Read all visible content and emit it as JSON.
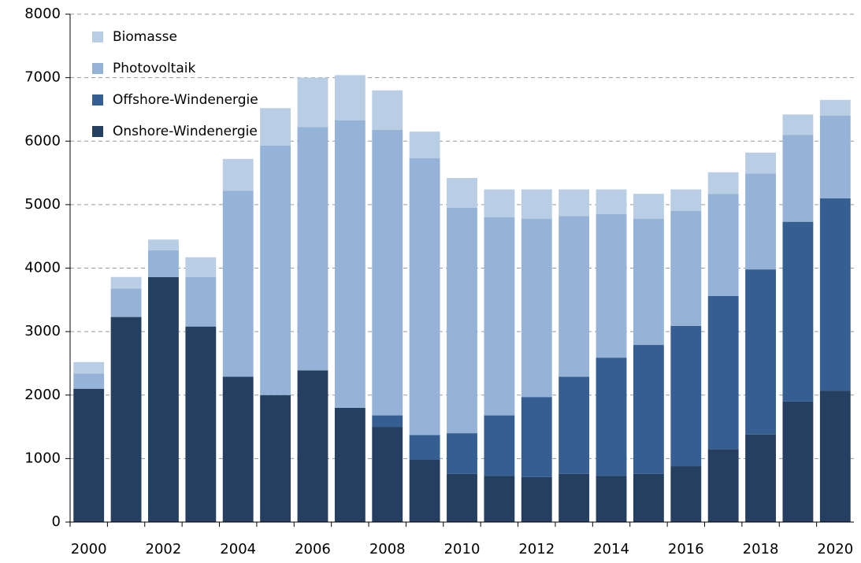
{
  "chart_data": {
    "type": "stacked_bar",
    "categories": [
      "2000",
      null,
      "2002",
      null,
      "2004",
      null,
      "2006",
      null,
      "2008",
      null,
      "2010",
      null,
      "2012",
      null,
      "2014",
      null,
      "2016",
      null,
      "2018",
      null,
      "2020"
    ],
    "series": [
      {
        "name": "Onshore-Windenergie",
        "color": "#253f60",
        "values": [
          2100,
          3230,
          3860,
          3080,
          2290,
          2000,
          2390,
          1800,
          1500,
          980,
          760,
          730,
          710,
          760,
          730,
          760,
          880,
          1150,
          1380,
          1900,
          2070
        ]
      },
      {
        "name": "Offshore-Windenergie",
        "color": "#355f92",
        "values": [
          0,
          0,
          0,
          0,
          0,
          0,
          0,
          0,
          180,
          390,
          640,
          950,
          1260,
          1530,
          1860,
          2030,
          2210,
          2410,
          2600,
          2830,
          3030
        ]
      },
      {
        "name": "Photovoltaik",
        "color": "#95b3d7",
        "values": [
          240,
          450,
          420,
          780,
          2930,
          3930,
          3830,
          4530,
          4500,
          4360,
          3550,
          3120,
          2810,
          2530,
          2260,
          1990,
          1810,
          1610,
          1510,
          1370,
          1300
        ]
      },
      {
        "name": "Biomasse",
        "color": "#b9cde5",
        "values": [
          180,
          180,
          170,
          310,
          500,
          590,
          780,
          710,
          620,
          420,
          470,
          440,
          460,
          420,
          390,
          390,
          340,
          340,
          330,
          320,
          250
        ]
      }
    ],
    "ylim": [
      0,
      8000
    ],
    "yticks": [
      0,
      1000,
      2000,
      3000,
      4000,
      5000,
      6000,
      7000,
      8000
    ],
    "grid": true,
    "legend": "top-left"
  }
}
